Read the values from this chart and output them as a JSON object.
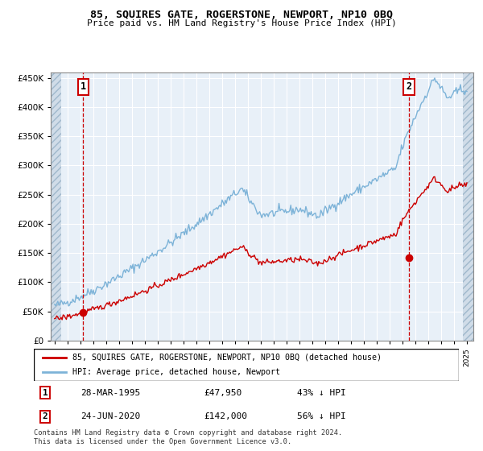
{
  "title": "85, SQUIRES GATE, ROGERSTONE, NEWPORT, NP10 0BQ",
  "subtitle": "Price paid vs. HM Land Registry's House Price Index (HPI)",
  "ylabel_ticks": [
    "£0",
    "£50K",
    "£100K",
    "£150K",
    "£200K",
    "£250K",
    "£300K",
    "£350K",
    "£400K",
    "£450K"
  ],
  "ylim": [
    0,
    460000
  ],
  "xlim_start": 1992.7,
  "xlim_end": 2025.5,
  "hpi_color": "#7db3d8",
  "price_color": "#cc0000",
  "bg_plot": "#e8f0f8",
  "bg_hatch": "#d0dce8",
  "hatch_pattern": "////",
  "legend_label_price": "85, SQUIRES GATE, ROGERSTONE, NEWPORT, NP10 0BQ (detached house)",
  "legend_label_hpi": "HPI: Average price, detached house, Newport",
  "transaction1_date": 1995.23,
  "transaction1_price": 47950,
  "transaction2_date": 2020.48,
  "transaction2_price": 142000,
  "annotation1_date": "28-MAR-1995",
  "annotation1_price": "£47,950",
  "annotation1_hpi": "43% ↓ HPI",
  "annotation2_date": "24-JUN-2020",
  "annotation2_price": "£142,000",
  "annotation2_hpi": "56% ↓ HPI",
  "footer": "Contains HM Land Registry data © Crown copyright and database right 2024.\nThis data is licensed under the Open Government Licence v3.0.",
  "hatch_left_end": 1993.5,
  "hatch_right_start": 2024.7
}
